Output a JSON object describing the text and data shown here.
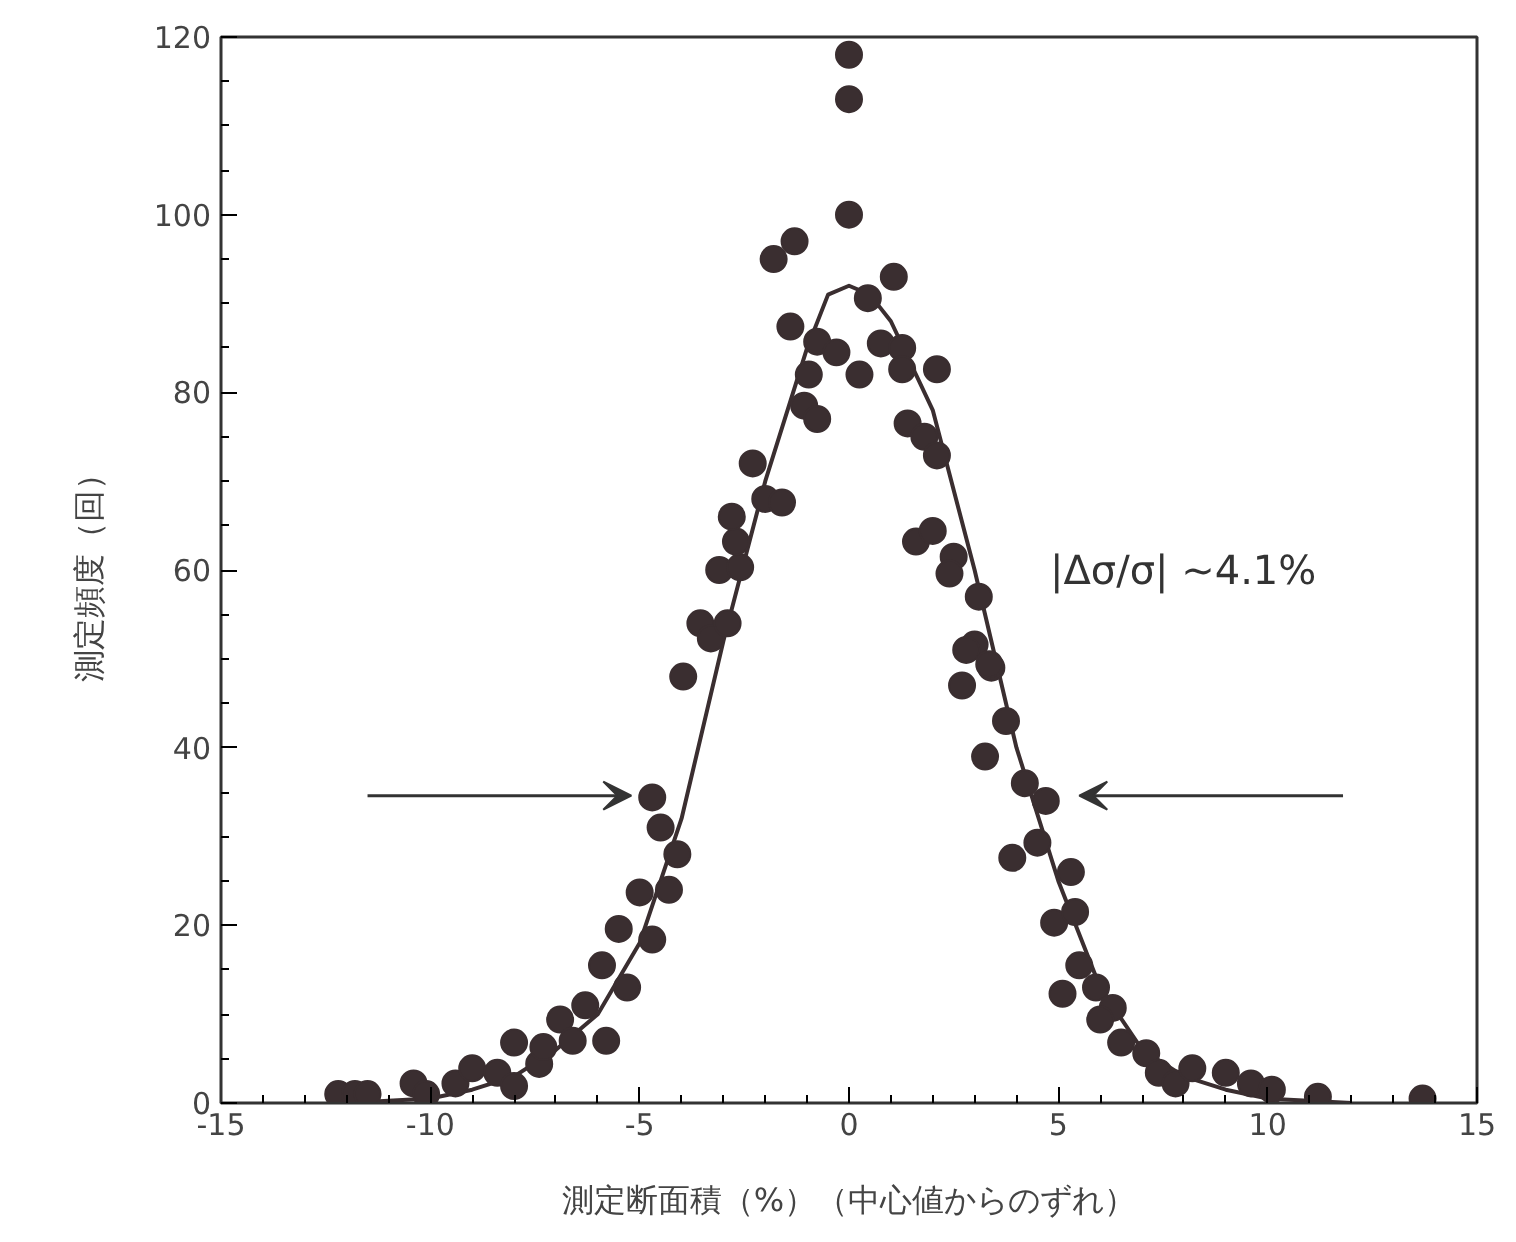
{
  "chart_data": {
    "type": "scatter",
    "xlabel": "測定断面積（%）（中心値からのずれ）",
    "ylabel": "測定頻度（回）",
    "xlim": [
      -15,
      15
    ],
    "ylim": [
      0,
      120
    ],
    "xticks": [
      -15,
      -10,
      -5,
      0,
      5,
      10,
      15
    ],
    "yticks": [
      0,
      20,
      40,
      60,
      80,
      100,
      120
    ],
    "grid": false,
    "annotations": [
      "|Δσ/σ| ~4.1%"
    ],
    "series": [
      {
        "marker": "circle",
        "color": "#3a2e30",
        "x": [
          -12.2,
          -11.8,
          -11.5,
          -10.4,
          -10.1,
          -9.4,
          -9.0,
          -8.4,
          -8.0,
          -8.0,
          -7.4,
          -7.3,
          -6.9,
          -6.6,
          -6.3,
          -5.8,
          -5.9,
          -5.5,
          -5.3,
          -5.0,
          -4.7,
          -4.3,
          -4.7,
          -4.5,
          -4.1,
          -3.96,
          -3.55,
          -3.3,
          -2.9,
          -3.1,
          -2.6,
          -2.7,
          -2.8,
          -2.3,
          -2.0,
          -1.6,
          -1.07,
          -0.76,
          -0.96,
          -1.4,
          -0.76,
          -0.3,
          0.25,
          -1.8,
          -1.3,
          0,
          0,
          0,
          0.45,
          1.07,
          0.76,
          1.27,
          1.27,
          2.1,
          1.4,
          1.8,
          2.1,
          1.6,
          2.0,
          2.5,
          2.4,
          3.1,
          3.0,
          2.8,
          3.4,
          2.7,
          3.35,
          3.75,
          3.25,
          4.2,
          4.7,
          3.9,
          4.5,
          5.3,
          4.9,
          5.4,
          5.5,
          5.9,
          5.1,
          6.3,
          6.0,
          6.5,
          7.1,
          7.4,
          7.8,
          8.2,
          9.0,
          9.6,
          10.1,
          11.2,
          13.7
        ],
        "values": [
          1,
          1,
          1,
          2.2,
          1,
          2.2,
          3.9,
          3.4,
          6.8,
          1.9,
          4.4,
          6.3,
          9.4,
          7,
          11,
          7,
          15.5,
          19.6,
          13,
          23.7,
          34.4,
          24,
          18.4,
          31,
          28,
          48,
          54,
          52.3,
          54,
          60,
          60.3,
          63.2,
          66,
          72,
          68,
          67.6,
          78.5,
          77,
          82,
          87.4,
          85.7,
          84.5,
          82,
          95,
          97,
          100,
          113,
          118,
          90.6,
          93,
          85.5,
          85,
          82.6,
          82.6,
          76.5,
          75,
          72.9,
          63.2,
          64.4,
          61.5,
          59.6,
          57,
          51.6,
          51,
          49,
          47,
          49.4,
          43,
          39,
          36,
          34,
          27.6,
          29.3,
          26,
          20.3,
          21.5,
          15.5,
          13,
          12.3,
          10.7,
          9.4,
          6.8,
          5.6,
          3.4,
          2.2,
          3.9,
          3.4,
          2.2,
          1.5,
          0.7,
          0.5
        ]
      },
      {
        "type": "line",
        "color": "#3a2e30",
        "x": [
          -12,
          -10,
          -9,
          -8,
          -7,
          -6,
          -5,
          -4,
          -3,
          -2,
          -1,
          -0.5,
          0,
          0.5,
          1,
          2,
          3,
          4,
          5,
          6,
          7,
          8,
          9,
          10,
          12
        ],
        "values": [
          0,
          0.5,
          1.5,
          3,
          6,
          10,
          18,
          32,
          52,
          70,
          85,
          91,
          92,
          91,
          88,
          78,
          60,
          40,
          25,
          13,
          6,
          3,
          1.5,
          0.5,
          0
        ]
      }
    ]
  }
}
